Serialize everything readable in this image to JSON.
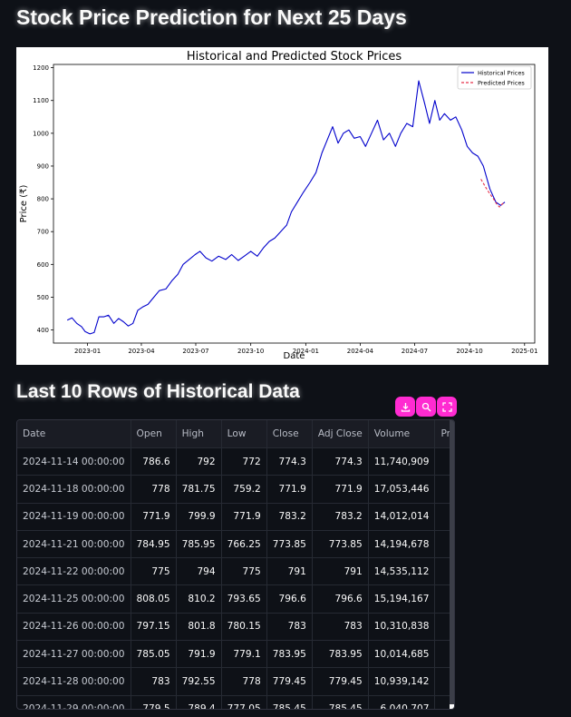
{
  "page": {
    "title": "Stock Price Prediction for Next 25 Days",
    "table_title": "Last 10 Rows of Historical Data"
  },
  "toolbar": {
    "download_icon": "download-icon",
    "search_icon": "search-icon",
    "fullscreen_icon": "fullscreen-icon",
    "accent": "#ff2bd1"
  },
  "chart_data": {
    "type": "line",
    "title": "Historical and Predicted Stock Prices",
    "xlabel": "Date",
    "ylabel": "Price (₹)",
    "ylim": [
      360,
      1210
    ],
    "xlim": [
      "2022-11-05",
      "2025-01-18"
    ],
    "y_ticks": [
      400,
      500,
      600,
      700,
      800,
      900,
      1000,
      1100,
      1200
    ],
    "x_ticks": [
      {
        "label": "2023-01",
        "date": "2023-01-01"
      },
      {
        "label": "2023-04",
        "date": "2023-04-01"
      },
      {
        "label": "2023-07",
        "date": "2023-07-01"
      },
      {
        "label": "2023-10",
        "date": "2023-10-01"
      },
      {
        "label": "2024-01",
        "date": "2024-01-01"
      },
      {
        "label": "2024-04",
        "date": "2024-04-01"
      },
      {
        "label": "2024-07",
        "date": "2024-07-01"
      },
      {
        "label": "2024-10",
        "date": "2024-10-01"
      },
      {
        "label": "2025-01",
        "date": "2025-01-01"
      }
    ],
    "legend_position": "top-right",
    "grid": false,
    "series": [
      {
        "name": "Historical Prices",
        "color": "#0000cc",
        "style": "solid",
        "x": [
          "2022-11-28",
          "2022-12-06",
          "2022-12-14",
          "2022-12-22",
          "2022-12-28",
          "2023-01-05",
          "2023-01-12",
          "2023-01-20",
          "2023-01-28",
          "2023-02-05",
          "2023-02-14",
          "2023-02-22",
          "2023-03-02",
          "2023-03-10",
          "2023-03-18",
          "2023-03-26",
          "2023-04-03",
          "2023-04-12",
          "2023-04-22",
          "2023-05-01",
          "2023-05-12",
          "2023-05-22",
          "2023-06-01",
          "2023-06-10",
          "2023-06-20",
          "2023-06-30",
          "2023-07-08",
          "2023-07-18",
          "2023-07-28",
          "2023-08-08",
          "2023-08-20",
          "2023-08-30",
          "2023-09-10",
          "2023-09-20",
          "2023-10-01",
          "2023-10-12",
          "2023-10-22",
          "2023-11-01",
          "2023-11-10",
          "2023-11-20",
          "2023-11-30",
          "2023-12-08",
          "2023-12-18",
          "2023-12-28",
          "2024-01-08",
          "2024-01-18",
          "2024-01-28",
          "2024-02-06",
          "2024-02-15",
          "2024-02-24",
          "2024-03-04",
          "2024-03-13",
          "2024-03-22",
          "2024-04-01",
          "2024-04-10",
          "2024-04-20",
          "2024-04-30",
          "2024-05-10",
          "2024-05-20",
          "2024-05-30",
          "2024-06-08",
          "2024-06-18",
          "2024-06-28",
          "2024-07-08",
          "2024-07-18",
          "2024-07-26",
          "2024-08-04",
          "2024-08-12",
          "2024-08-20",
          "2024-08-30",
          "2024-09-08",
          "2024-09-18",
          "2024-09-27",
          "2024-10-06",
          "2024-10-15",
          "2024-10-24",
          "2024-11-04",
          "2024-11-14",
          "2024-11-22",
          "2024-11-29"
        ],
        "values": [
          430,
          437,
          420,
          410,
          395,
          388,
          392,
          440,
          440,
          445,
          420,
          435,
          425,
          412,
          420,
          460,
          470,
          478,
          500,
          520,
          525,
          550,
          570,
          600,
          615,
          630,
          640,
          620,
          610,
          625,
          615,
          630,
          612,
          625,
          640,
          625,
          650,
          670,
          680,
          700,
          720,
          760,
          790,
          820,
          850,
          880,
          940,
          980,
          1020,
          970,
          1000,
          1010,
          985,
          990,
          960,
          1000,
          1040,
          980,
          1000,
          960,
          1000,
          1030,
          1020,
          1160,
          1090,
          1030,
          1100,
          1040,
          1060,
          1040,
          1050,
          1010,
          960,
          940,
          930,
          900,
          830,
          790,
          780,
          790
        ]
      },
      {
        "name": "Predicted Prices",
        "color": "#e8314a",
        "style": "dashed",
        "x": [
          "2024-10-20",
          "2024-10-28",
          "2024-11-04",
          "2024-11-10",
          "2024-11-15",
          "2024-11-20",
          "2024-11-25",
          "2024-11-29"
        ],
        "values": [
          860,
          835,
          815,
          800,
          785,
          775,
          785,
          790
        ]
      }
    ]
  },
  "table": {
    "columns": [
      "Date",
      "Open",
      "High",
      "Low",
      "Close",
      "Adj Close",
      "Volume",
      "Prediction"
    ],
    "rows": [
      [
        "2024-11-14 00:00:00",
        "786.6",
        "792",
        "772",
        "774.3",
        "774.3",
        "11,740,909",
        "None"
      ],
      [
        "2024-11-18 00:00:00",
        "778",
        "781.75",
        "759.2",
        "771.9",
        "771.9",
        "17,053,446",
        "None"
      ],
      [
        "2024-11-19 00:00:00",
        "771.9",
        "799.9",
        "771.9",
        "783.2",
        "783.2",
        "14,012,014",
        "None"
      ],
      [
        "2024-11-21 00:00:00",
        "784.95",
        "785.95",
        "766.25",
        "773.85",
        "773.85",
        "14,194,678",
        "None"
      ],
      [
        "2024-11-22 00:00:00",
        "775",
        "794",
        "775",
        "791",
        "791",
        "14,535,112",
        "None"
      ],
      [
        "2024-11-25 00:00:00",
        "808.05",
        "810.2",
        "793.65",
        "796.6",
        "796.6",
        "15,194,167",
        "None"
      ],
      [
        "2024-11-26 00:00:00",
        "797.15",
        "801.8",
        "780.15",
        "783",
        "783",
        "10,310,838",
        "None"
      ],
      [
        "2024-11-27 00:00:00",
        "785.05",
        "791.9",
        "779.1",
        "783.95",
        "783.95",
        "10,014,685",
        "None"
      ],
      [
        "2024-11-28 00:00:00",
        "783",
        "792.55",
        "778",
        "779.45",
        "779.45",
        "10,939,142",
        "None"
      ],
      [
        "2024-11-29 00:00:00",
        "779.5",
        "789.4",
        "777.05",
        "785.45",
        "785.45",
        "6,040,707",
        "None"
      ]
    ]
  }
}
